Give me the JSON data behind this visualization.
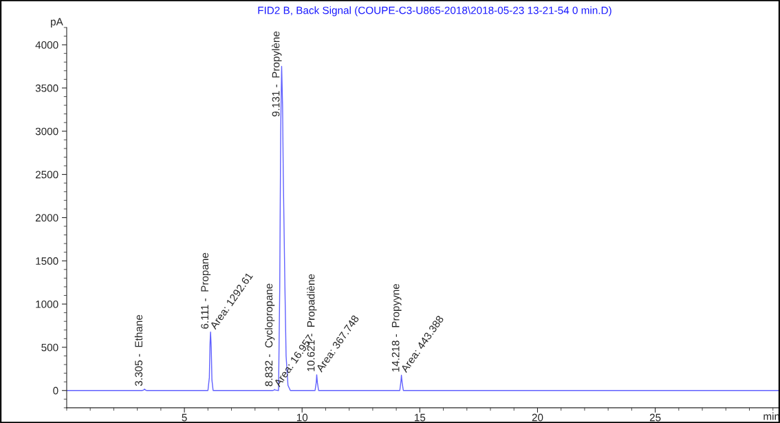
{
  "chart_data": {
    "type": "line",
    "title": "FID2 B, Back Signal (COUPE-C3-U865-2018\\2018-05-23 13-21-54 0 min.D)",
    "xlabel": "min",
    "ylabel": "pA",
    "x": [
      0,
      3.2,
      3.27,
      3.305,
      3.35,
      3.4,
      6.0,
      6.06,
      6.09,
      6.111,
      6.14,
      6.17,
      6.22,
      8.75,
      8.81,
      8.832,
      8.86,
      9.0,
      9.05,
      9.09,
      9.131,
      9.17,
      9.2,
      9.27,
      9.32,
      9.4,
      9.5,
      10.55,
      10.6,
      10.621,
      10.65,
      10.7,
      14.15,
      14.2,
      14.218,
      14.25,
      14.3,
      30.3
    ],
    "series": [
      {
        "color": "#6060ff",
        "values": [
          0,
          0,
          5,
          15,
          5,
          0,
          0,
          150,
          550,
          676,
          500,
          120,
          0,
          0,
          5,
          12,
          5,
          0,
          1200,
          3000,
          3750,
          3300,
          2500,
          1195,
          400,
          60,
          0,
          0,
          90,
          182,
          90,
          0,
          0,
          110,
          177,
          90,
          0,
          0
        ]
      }
    ],
    "xlim": [
      0,
      30.3
    ],
    "xticks": [
      5,
      10,
      15,
      20,
      25
    ],
    "ylim": [
      -200,
      4200
    ],
    "yticks": [
      0,
      500,
      1000,
      1500,
      2000,
      2500,
      3000,
      3500,
      4000
    ],
    "grid": false,
    "legend": false,
    "marker": "none",
    "line_style": "solid",
    "annotations": [
      {
        "text": "3.305 -  Ethane",
        "x": 3.305,
        "y": 15
      },
      {
        "text": "6.111 -  Propane",
        "x": 6.111,
        "y": 676
      },
      {
        "text": "Area: 1292.61",
        "x": 6.111,
        "y": 676
      },
      {
        "text": "8.832 -  Cyclopropane",
        "x": 8.832,
        "y": 12
      },
      {
        "text": "Area: 16.957",
        "x": 8.832,
        "y": 12
      },
      {
        "text": "9.131 -  Propylène",
        "x": 9.131,
        "y": 3750
      },
      {
        "text": "10.621 -  Propadiène",
        "x": 10.621,
        "y": 182
      },
      {
        "text": "Area: 367.748",
        "x": 10.621,
        "y": 182
      },
      {
        "text": "14.218 -  Propyyne",
        "x": 14.218,
        "y": 177
      },
      {
        "text": "Area: 443.388",
        "x": 14.218,
        "y": 177
      }
    ]
  }
}
